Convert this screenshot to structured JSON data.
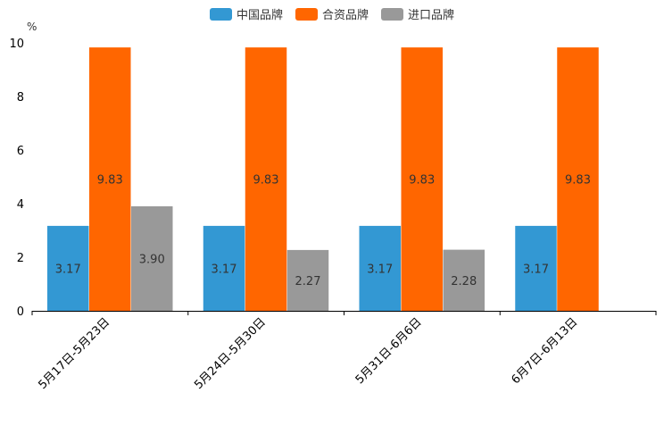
{
  "chart_data": {
    "type": "bar",
    "unit": "%",
    "categories": [
      "5月17日-5月23日",
      "5月24日-5月30日",
      "5月31日-6月6日",
      "6月7日-6月13日"
    ],
    "series": [
      {
        "name": "中国品牌",
        "color": "#3398d3",
        "values": [
          3.17,
          3.17,
          3.17,
          3.17
        ],
        "labels": [
          "3.17",
          "3.17",
          "3.17",
          "3.17"
        ]
      },
      {
        "name": "合资品牌",
        "color": "#ff6600",
        "values": [
          9.83,
          9.83,
          9.83,
          9.83
        ],
        "labels": [
          "9.83",
          "9.83",
          "9.83",
          "9.83"
        ]
      },
      {
        "name": "进口品牌",
        "color": "#999999",
        "values": [
          3.9,
          2.27,
          2.28,
          null
        ],
        "labels": [
          "3.90",
          "2.27",
          "2.28",
          null
        ]
      }
    ],
    "yticks": [
      0,
      2,
      4,
      6,
      8,
      10
    ],
    "ylim": [
      0,
      10
    ],
    "legend_position": "top-center",
    "grid": false
  }
}
